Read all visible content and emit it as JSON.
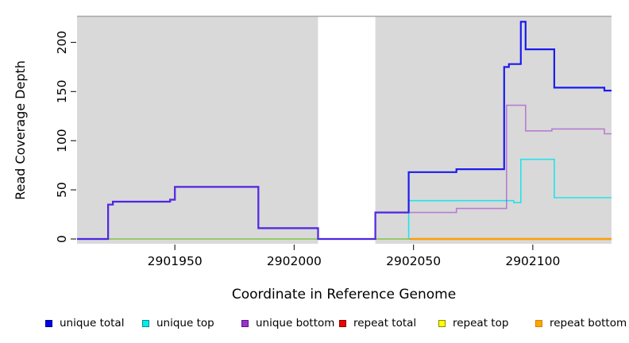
{
  "chart_data": {
    "type": "line",
    "title": "",
    "xlabel": "Coordinate in Reference Genome",
    "ylabel": "Read Coverage Depth",
    "xlim": [
      2901909,
      2902133
    ],
    "ylim": [
      0,
      227
    ],
    "x_ticks": [
      2901950,
      2902000,
      2902050,
      2902100
    ],
    "y_ticks": [
      0,
      50,
      100,
      150,
      200
    ],
    "grid": false,
    "legend_position": "bottom",
    "panel_bg": "#d9d9d9",
    "panel_top_edge_color": "#a8a8a8",
    "uncovered_gap": {
      "x0": 2902010,
      "x1": 2902034,
      "color": "#ffffff"
    },
    "series": [
      {
        "name": "unique total",
        "color": "#1b1bee",
        "opacity": 1,
        "width": 2.2,
        "z": 3,
        "marker": {
          "fill": "#0000ee",
          "border": "#000080"
        },
        "step_points": [
          [
            2901909,
            0
          ],
          [
            2901922,
            35
          ],
          [
            2901924,
            38
          ],
          [
            2901948,
            40
          ],
          [
            2901950,
            53
          ],
          [
            2901985,
            11
          ],
          [
            2902010,
            0
          ],
          [
            2902034,
            27
          ],
          [
            2902048,
            68
          ],
          [
            2902068,
            71
          ],
          [
            2902088,
            175
          ],
          [
            2902090,
            178
          ],
          [
            2902095,
            221
          ],
          [
            2902097,
            193
          ],
          [
            2902109,
            154
          ],
          [
            2902130,
            151
          ],
          [
            2902133,
            151
          ]
        ]
      },
      {
        "name": "unique top",
        "color": "#00e5ee",
        "opacity": 0.85,
        "width": 1.6,
        "z": 1,
        "marker": {
          "fill": "#00eeee",
          "border": "#008b8b"
        },
        "step_points": [
          [
            2901909,
            0
          ],
          [
            2902048,
            39
          ],
          [
            2902092,
            37
          ],
          [
            2902095,
            81
          ],
          [
            2902109,
            42
          ],
          [
            2902133,
            42
          ]
        ]
      },
      {
        "name": "unique bottom",
        "color": "#9a32cd",
        "opacity": 0.55,
        "width": 1.6,
        "z": 4,
        "marker": {
          "fill": "#9a32cd",
          "border": "#551a8b"
        },
        "step_points": [
          [
            2901909,
            0
          ],
          [
            2901922,
            35
          ],
          [
            2901924,
            38
          ],
          [
            2901948,
            40
          ],
          [
            2901950,
            53
          ],
          [
            2901985,
            11
          ],
          [
            2902010,
            0
          ],
          [
            2902034,
            27
          ],
          [
            2902068,
            31
          ],
          [
            2902089,
            136
          ],
          [
            2902097,
            110
          ],
          [
            2902108,
            112
          ],
          [
            2902130,
            107
          ],
          [
            2902133,
            107
          ]
        ]
      },
      {
        "name": "repeat total",
        "color": "#dd1111",
        "opacity": 1,
        "width": 1.5,
        "z": 0,
        "marker": {
          "fill": "#ee0000",
          "border": "#8b0000"
        },
        "step_points": [
          [
            2901909,
            0
          ],
          [
            2902133,
            0
          ]
        ]
      },
      {
        "name": "repeat top",
        "color": "#eded00",
        "opacity": 0.55,
        "width": 1.6,
        "z": 2,
        "marker": {
          "fill": "#ffff00",
          "border": "#8b8b00"
        },
        "step_points": [
          [
            2901909,
            0
          ],
          [
            2902133,
            0
          ]
        ]
      },
      {
        "name": "repeat bottom",
        "color": "#ff9e00",
        "opacity": 1,
        "width": 2.4,
        "z": 5,
        "marker": {
          "fill": "#ffa500",
          "border": "#cd8500"
        },
        "step_points": [
          [
            2902049,
            0
          ],
          [
            2902133,
            0
          ]
        ]
      }
    ]
  }
}
